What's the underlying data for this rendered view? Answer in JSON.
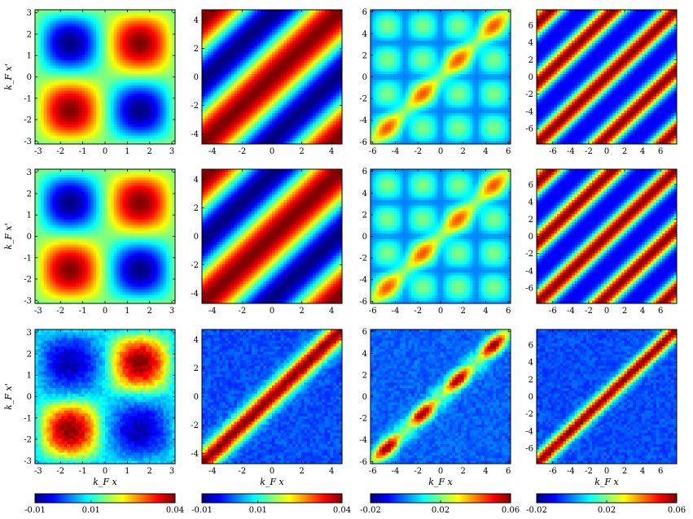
{
  "chart_data": {
    "type": "heatmap",
    "grid": {
      "rows": 3,
      "cols": 4
    },
    "colormap": "jet",
    "xlabel": "k_F x",
    "ylabel": "k_F x'",
    "columns": [
      {
        "axis_range": [
          -3.14159,
          3.14159
        ],
        "ticks": [
          "-3",
          "-2",
          "-1",
          "0",
          "1",
          "2",
          "3"
        ],
        "tick_values": [
          -3,
          -2,
          -1,
          0,
          1,
          2,
          3
        ],
        "pattern": "product-sine",
        "colorbar": {
          "range": [
            -0.01,
            0.04
          ],
          "tick_labels": [
            "-0.01",
            "0.01",
            "0.04"
          ],
          "tick_values": [
            -0.01,
            0.01,
            0.04
          ]
        }
      },
      {
        "axis_range": [
          -4.7,
          4.7
        ],
        "ticks": [
          "-4",
          "-2",
          "0",
          "2",
          "4"
        ],
        "tick_values": [
          -4,
          -2,
          0,
          2,
          4
        ],
        "pattern": "diagonal-bands",
        "colorbar": {
          "range": [
            -0.01,
            0.04
          ],
          "tick_labels": [
            "-0.01",
            "0.01",
            "0.04"
          ],
          "tick_values": [
            -0.01,
            0.01,
            0.04
          ]
        }
      },
      {
        "axis_range": [
          -6.2,
          6.2
        ],
        "ticks": [
          "-6",
          "-4",
          "-2",
          "0",
          "2",
          "4",
          "6"
        ],
        "tick_values": [
          -6,
          -4,
          -2,
          0,
          2,
          4,
          6
        ],
        "pattern": "diagonal-peaks",
        "colorbar": {
          "range": [
            -0.02,
            0.06
          ],
          "tick_labels": [
            "-0.02",
            "0.02",
            "0.06"
          ],
          "tick_values": [
            -0.02,
            0.02,
            0.06
          ]
        }
      },
      {
        "axis_range": [
          -7.8,
          7.8
        ],
        "ticks": [
          "-6",
          "-4",
          "-2",
          "0",
          "2",
          "4",
          "6"
        ],
        "tick_values": [
          -6,
          -4,
          -2,
          0,
          2,
          4,
          6
        ],
        "pattern": "narrow-diagonal-bands",
        "colorbar": {
          "range": [
            -0.02,
            0.06
          ],
          "tick_labels": [
            "-0.02",
            "0.02",
            "0.06"
          ],
          "tick_values": [
            -0.02,
            0.02,
            0.06
          ]
        }
      }
    ],
    "rows_description": [
      "exact",
      "exact",
      "sampled/noisy estimate"
    ]
  }
}
